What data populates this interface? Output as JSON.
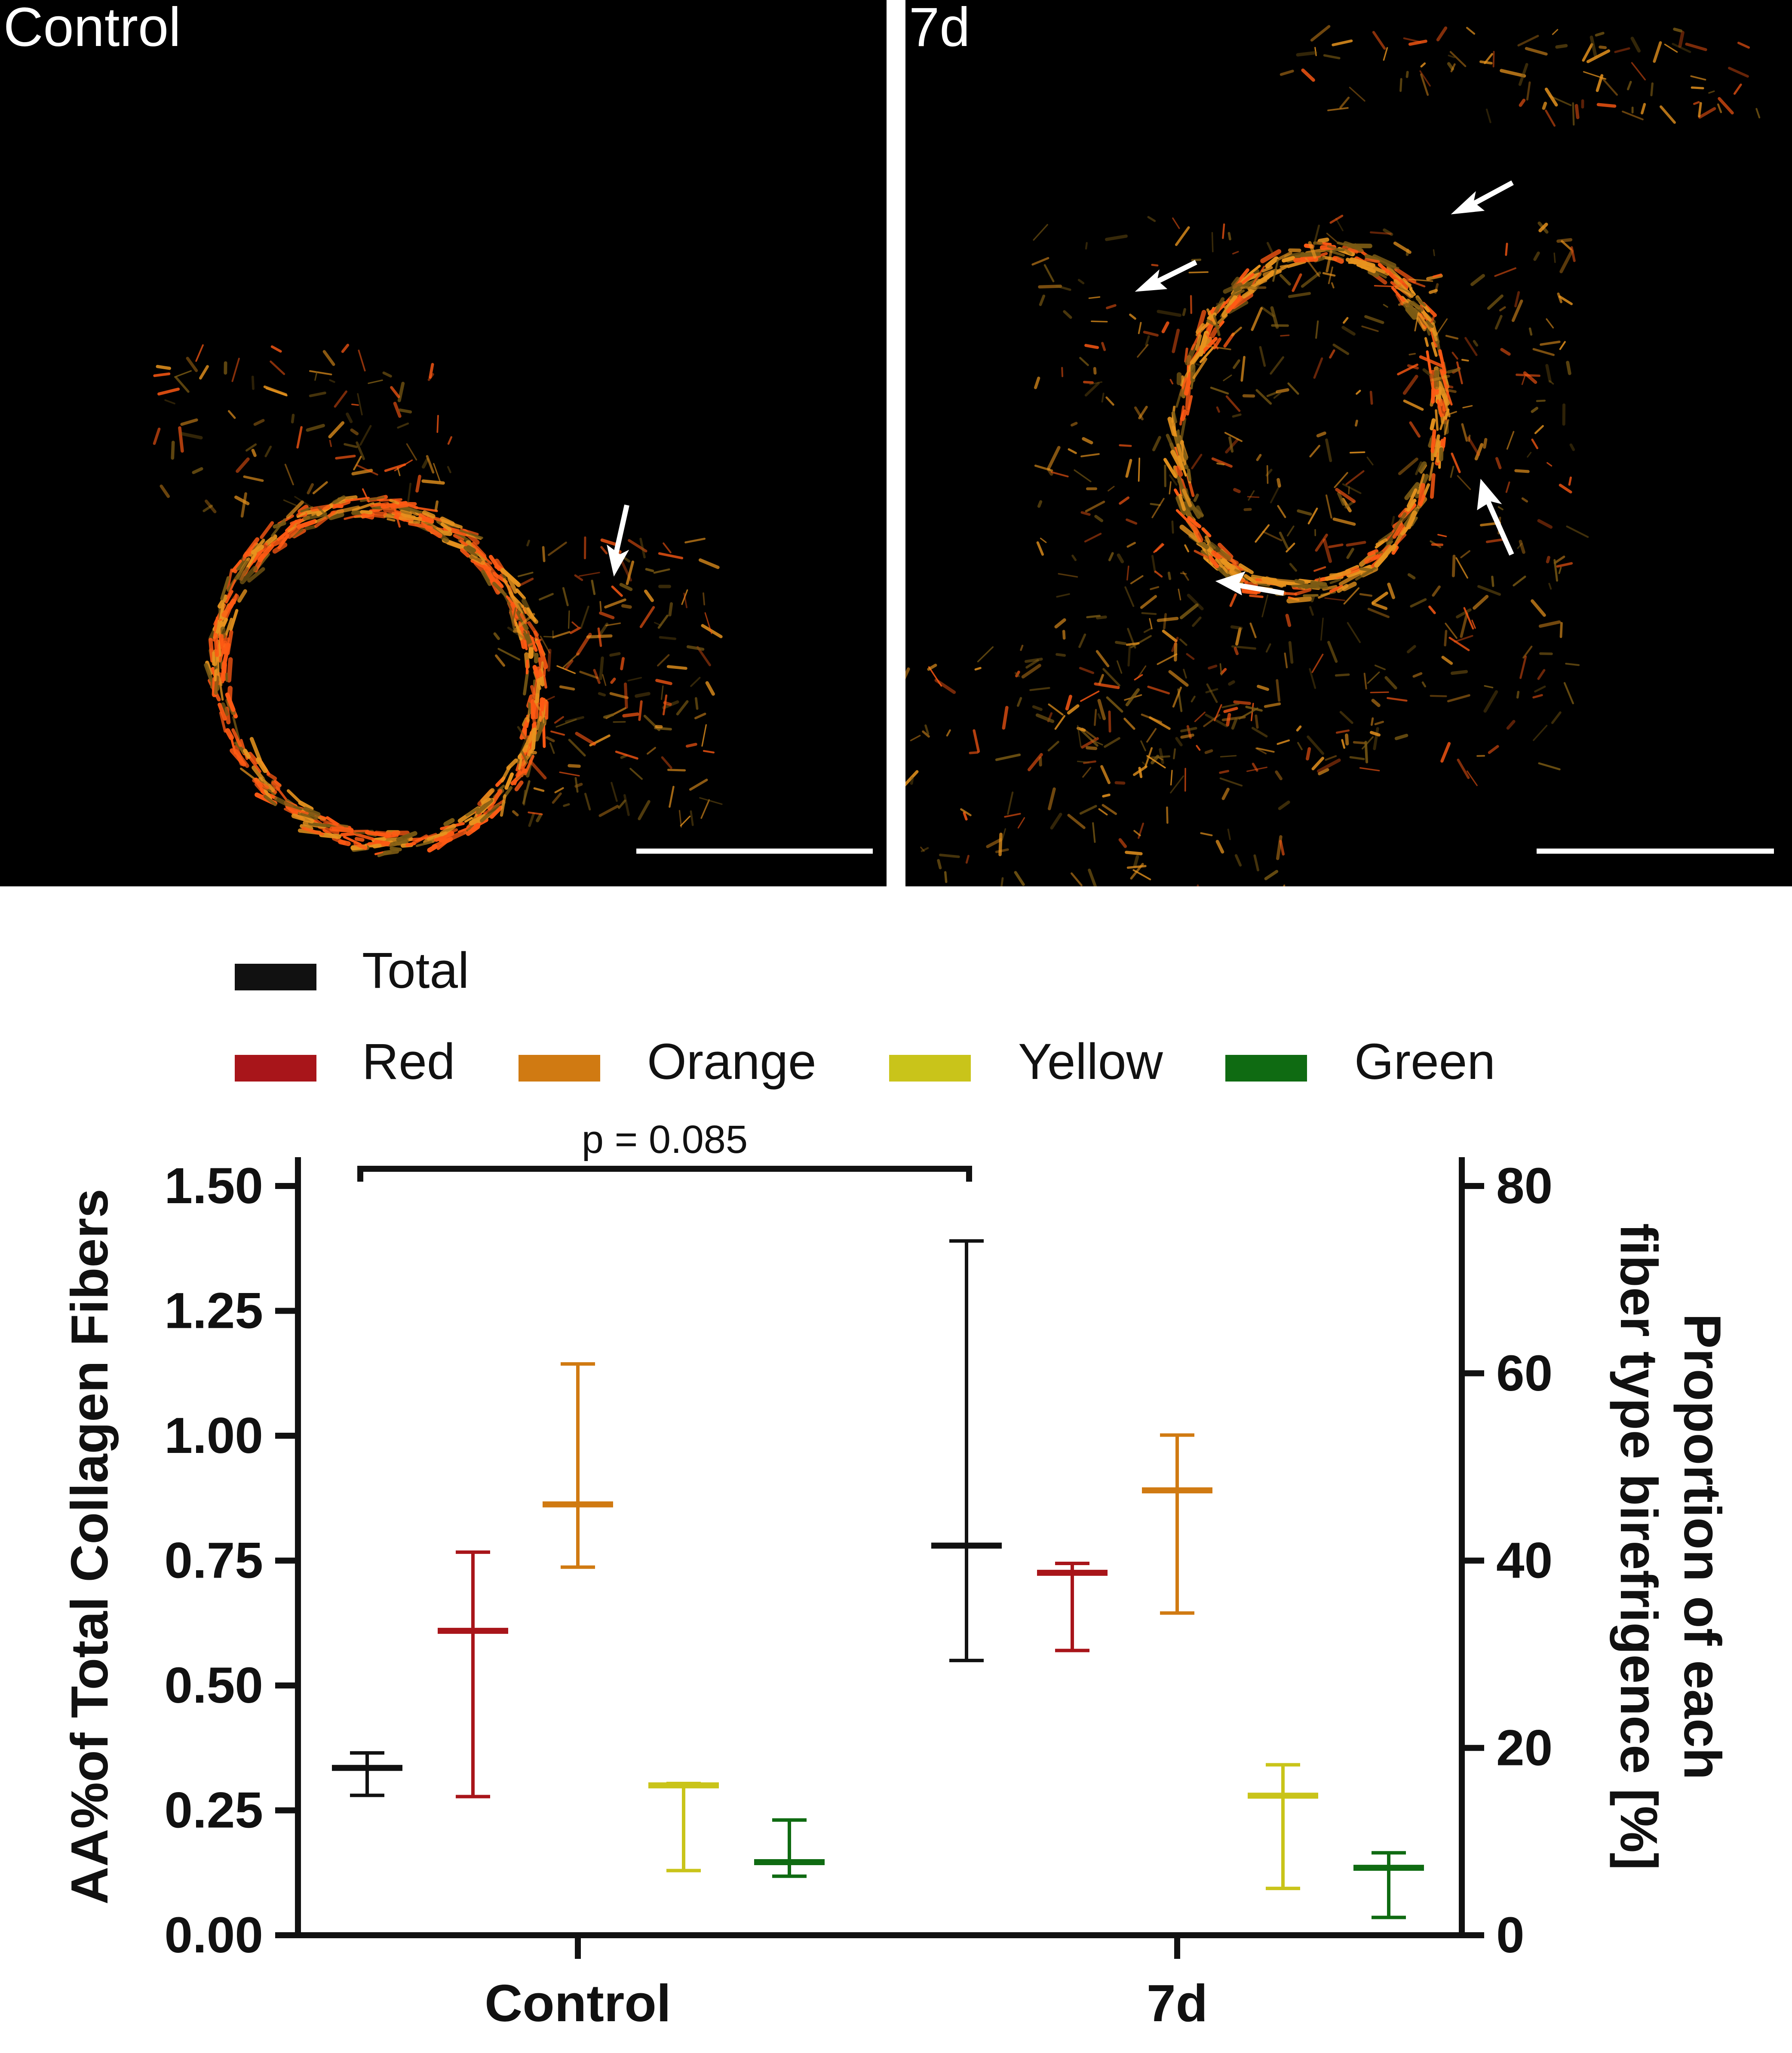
{
  "micrographs": [
    {
      "label": "Control",
      "arrow_count": 1
    },
    {
      "label": "7d",
      "arrow_count": 4
    }
  ],
  "colors": {
    "Total": "#111111",
    "Red": "#a8151a",
    "Orange": "#d07a12",
    "Yellow": "#c9c41a",
    "Green": "#0f6b12",
    "fiber_hot": "#ff5a14",
    "fiber_warm": "#e8941e",
    "fiber_dim": "#7a5a14",
    "arrow": "#ffffff"
  },
  "chart_data": {
    "type": "scatter",
    "title": "",
    "categories": [
      "Control",
      "7d"
    ],
    "ylabel_left": "AA%of Total Collagen Fibers",
    "ylabel_right_line1": "Proportion of each",
    "ylabel_right_line2": "fiber type birefrigence [%]",
    "ylim_left": [
      0,
      1.5
    ],
    "ylim_right": [
      0,
      80
    ],
    "yticks_left": [
      "0.00",
      "0.25",
      "0.50",
      "0.75",
      "1.00",
      "1.25",
      "1.50"
    ],
    "yticks_right": [
      "0",
      "20",
      "40",
      "60",
      "80"
    ],
    "legend": [
      "Total",
      "Red",
      "Orange",
      "Yellow",
      "Green"
    ],
    "legend_position": "top",
    "annotation": "p = 0.085",
    "series": [
      {
        "name": "Total",
        "axis": "left",
        "points": [
          {
            "group": "Control",
            "mean": 0.335,
            "low": 0.28,
            "high": 0.365
          },
          {
            "group": "7d",
            "mean": 0.78,
            "low": 0.55,
            "high": 1.39
          }
        ]
      },
      {
        "name": "Red",
        "axis": "right",
        "points": [
          {
            "group": "Control",
            "mean": 32.5,
            "low": 14.8,
            "high": 40.9
          },
          {
            "group": "7d",
            "mean": 38.7,
            "low": 30.4,
            "high": 39.7
          }
        ]
      },
      {
        "name": "Orange",
        "axis": "right",
        "points": [
          {
            "group": "Control",
            "mean": 46.0,
            "low": 39.3,
            "high": 61.0
          },
          {
            "group": "7d",
            "mean": 47.5,
            "low": 34.4,
            "high": 53.4
          }
        ]
      },
      {
        "name": "Yellow",
        "axis": "right",
        "points": [
          {
            "group": "Control",
            "mean": 16.0,
            "low": 6.9,
            "high": 16.2
          },
          {
            "group": "7d",
            "mean": 14.9,
            "low": 5.0,
            "high": 18.2
          }
        ]
      },
      {
        "name": "Green",
        "axis": "right",
        "points": [
          {
            "group": "Control",
            "mean": 7.8,
            "low": 6.3,
            "high": 12.3
          },
          {
            "group": "7d",
            "mean": 7.2,
            "low": 1.9,
            "high": 8.8
          }
        ]
      }
    ]
  }
}
